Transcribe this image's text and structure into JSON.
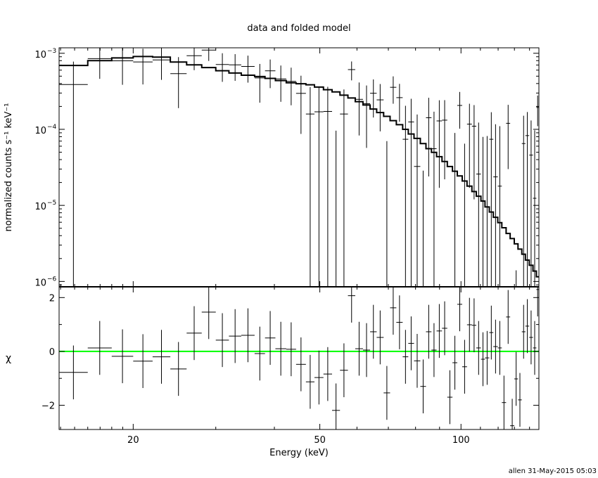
{
  "chart_data": {
    "type": "scatter",
    "title": "data and folded model",
    "xlabel": "Energy (keV)",
    "ylabel_top": "normalized counts s⁻¹ keV⁻¹",
    "ylabel_bottom": "χ",
    "footer": "allen 31-May-2015 05:03",
    "xscale": "log",
    "xlim": [
      13.9,
      146.6
    ],
    "ylim_top": [
      8.5e-07,
      0.00118
    ],
    "yscale_top": "log",
    "ylim_bottom": [
      -2.9,
      2.4
    ],
    "x_tick_labels": [
      {
        "v": 20,
        "label": "20"
      },
      {
        "v": 50,
        "label": "50"
      },
      {
        "v": 100,
        "label": "100"
      }
    ],
    "y_top_tick_labels": [
      {
        "v": 0.001,
        "base": "10",
        "exp": "−3"
      },
      {
        "v": 0.0001,
        "base": "10",
        "exp": "−4"
      },
      {
        "v": 1e-05,
        "base": "10",
        "exp": "−5"
      },
      {
        "v": 1e-06,
        "base": "10",
        "exp": "−6"
      }
    ],
    "y_bottom_tick_labels": [
      {
        "v": 2,
        "label": "2"
      },
      {
        "v": 0,
        "label": "0"
      },
      {
        "v": -2,
        "label": "−2"
      }
    ],
    "colors": {
      "data": "#000000",
      "model": "#000000",
      "zero_line": "#00ff00"
    },
    "bin_edges": [
      13.9,
      16,
      18,
      20,
      22,
      24,
      26,
      28,
      30,
      32,
      34,
      36.3,
      38.2,
      40.2,
      42.4,
      44.5,
      46.7,
      48.7,
      50.9,
      53.1,
      55.2,
      57.4,
      59.5,
      61.8,
      64,
      66.1,
      68.4,
      70.6,
      72.8,
      75.1,
      77.2,
      79.4,
      81.9,
      84.2,
      86.5,
      88.7,
      91.1,
      93.5,
      95.9,
      98.2,
      100.6,
      103,
      105.5,
      107.8,
      110.3,
      112.5,
      114.9,
      117.2,
      119.8,
      122.2,
      124.8,
      127.3,
      129.9,
      132.3,
      134.8,
      137.2,
      139.8,
      142.4,
      144.8,
      146.6
    ],
    "model": [
      0.000692,
      0.0008,
      0.000869,
      0.000906,
      0.000891,
      0.000767,
      0.000705,
      0.000649,
      0.000589,
      0.00055,
      0.000515,
      0.000494,
      0.000468,
      0.000437,
      0.000409,
      0.000398,
      0.000385,
      0.000359,
      0.000332,
      0.00031,
      0.000281,
      0.000258,
      0.000231,
      0.000209,
      0.000185,
      0.000166,
      0.000148,
      0.00013,
      0.000115,
      0.0001,
      8.69e-05,
      7.59e-05,
      6.49e-05,
      5.56e-05,
      4.98e-05,
      4.37e-05,
      3.77e-05,
      3.24e-05,
      2.81e-05,
      2.44e-05,
      2.09e-05,
      1.79e-05,
      1.52e-05,
      1.32e-05,
      1.14e-05,
      9.53e-06,
      8.17e-06,
      6.97e-06,
      5.93e-06,
      5.08e-06,
      4.27e-06,
      3.66e-06,
      3.12e-06,
      2.66e-06,
      2.28e-06,
      1.91e-06,
      1.63e-06,
      1.37e-06,
      1.15e-06
    ],
    "data": [
      0.000388,
      0.000851,
      0.000795,
      0.000769,
      0.000817,
      0.00054,
      0.000929,
      0.001102,
      0.000711,
      0.000704,
      0.000671,
      0.000474,
      0.000588,
      0.00046,
      0.000427,
      0.000297,
      0.000159,
      0.00017,
      0.000172,
      -8.4e-05,
      0.000159,
      0.00061,
      0.000248,
      0.000217,
      0.000298,
      0.000244,
      -7.5e-05,
      0.000357,
      0.000261,
      7.4e-05,
      0.000125,
      3.25e-05,
      -9.24e-05,
      0.000142,
      5.56e-05,
      0.000129,
      0.000132,
      -0.000151,
      -1.64e-05,
      0.000206,
      -3.72e-05,
      0.000117,
      0.00011,
      2.58e-05,
      -1.64e-05,
      -1.33e-05,
      7.4e-05,
      2.37e-05,
      1.79e-05,
      -0.000168,
      0.00012,
      -0.000242,
      -8.66e-05,
      -0.000154,
      6.5e-05,
      8.27e-05,
      4.58e-05,
      1.24e-05,
      0.000194
    ],
    "error": [
      0.00039,
      0.00039,
      0.00041,
      0.00038,
      0.00037,
      0.00035,
      0.00033,
      0.00031,
      0.00029,
      0.00027,
      0.00026,
      0.00025,
      0.00024,
      0.00023,
      0.00022,
      0.00021,
      0.0002,
      0.000195,
      0.00019,
      0.00018,
      0.000175,
      0.00017,
      0.000165,
      0.00016,
      0.000155,
      0.00015,
      0.000145,
      0.00014,
      0.000135,
      0.00013,
      0.000127,
      0.000124,
      0.000121,
      0.000118,
      0.000115,
      0.000112,
      0.00011,
      0.000108,
      0.000106,
      0.000104,
      0.000102,
      0.0001,
      9.8e-05,
      9.7e-05,
      9.6e-05,
      9.5e-05,
      9.4e-05,
      9.3e-05,
      9.2e-05,
      9.1e-05,
      9e-05,
      8.9e-05,
      8.8e-05,
      8.7e-05,
      8.6e-05,
      8.6e-05,
      8.5e-05,
      8.5e-05,
      8.4e-05
    ],
    "chi": [
      -0.78,
      0.13,
      -0.18,
      -0.36,
      -0.2,
      -0.65,
      0.68,
      1.46,
      0.42,
      0.57,
      0.6,
      -0.08,
      0.5,
      0.1,
      0.08,
      -0.48,
      -1.13,
      -0.97,
      -0.84,
      -2.19,
      -0.7,
      2.07,
      0.1,
      0.05,
      0.73,
      0.52,
      -1.54,
      1.62,
      1.08,
      -0.2,
      0.3,
      -0.35,
      -1.3,
      0.73,
      0.05,
      0.76,
      0.86,
      -1.7,
      -0.42,
      1.75,
      -0.57,
      0.99,
      0.97,
      0.13,
      -0.29,
      -0.24,
      0.7,
      0.18,
      0.13,
      -1.9,
      1.28,
      -2.76,
      -1.02,
      -1.8,
      0.73,
      0.94,
      0.52,
      0.13,
      2.3
    ]
  }
}
